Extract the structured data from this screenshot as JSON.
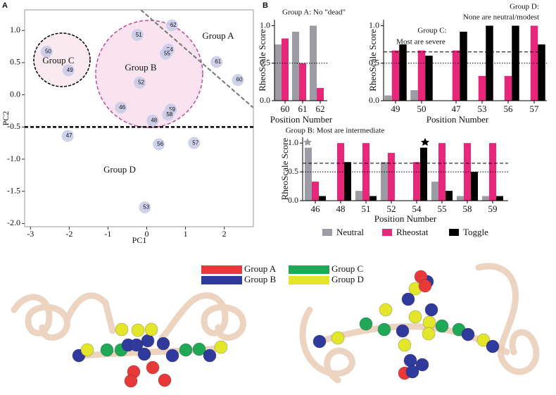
{
  "panel_labels": [
    "A",
    "B"
  ],
  "chart_data": [
    {
      "type": "scatter",
      "xlabel": "PC1",
      "ylabel": "PC2",
      "x": [
        -2.58,
        -2.02,
        -0.24,
        0.65,
        0.56,
        0.49,
        1.8,
        2.35,
        -0.18,
        -0.67,
        0.62,
        0.55,
        0.15,
        -2.04,
        0.31,
        1.22,
        -0.05
      ],
      "values": [
        0.67,
        0.38,
        0.93,
        1.08,
        0.7,
        0.64,
        0.51,
        0.23,
        0.19,
        -0.2,
        -0.23,
        -0.31,
        -0.4,
        -0.64,
        -0.77,
        -0.75,
        -1.75
      ],
      "point_labels": [
        "50",
        "49",
        "51",
        "62",
        "54",
        "55",
        "61",
        "60",
        "52",
        "46",
        "59",
        "58",
        "48",
        "47",
        "56",
        "57",
        "53"
      ],
      "color": "#c8cae8",
      "xlim": [
        -3.15,
        2.75
      ],
      "ylim": [
        -2.05,
        1.32
      ],
      "xticks": [
        -3,
        -2,
        -1,
        0,
        1,
        2
      ],
      "yticks": [
        {
          "value": -2,
          "label": "-2.0"
        },
        -1.5,
        {
          "value": -1,
          "label": "-1.0"
        },
        -0.5,
        {
          "value": 0,
          "label": "0.0"
        },
        0.5,
        {
          "value": 1,
          "label": "1.0"
        }
      ],
      "reference_lines": [
        {
          "value": -0.5,
          "style": "dashed"
        }
      ],
      "annotations": [
        "Group A",
        "Group B",
        "Group C",
        "Group D"
      ]
    },
    {
      "type": "bar",
      "title": "Group A: No \"dead\"",
      "xlabel": "Position Number",
      "ylabel": "RheoScale Score",
      "categories": [
        "60",
        "61",
        "62"
      ],
      "series": [
        {
          "values": [
            0.75,
            0.92,
            1.0
          ]
        },
        {
          "values": [
            0.83,
            0.5,
            0.17
          ]
        },
        {
          "values": [
            0,
            0,
            0
          ]
        }
      ],
      "ylim": [
        0,
        1.08
      ],
      "yticks": [
        {
          "value": 0,
          "label": "0.0"
        },
        0.5,
        {
          "value": 1,
          "label": "1.0"
        }
      ],
      "reference_lines": [
        {
          "value": 0.5,
          "style": "dotted"
        }
      ]
    },
    {
      "type": "bar",
      "xlabel": "Position Number",
      "ylabel": "RheoScale Score",
      "annotations": [
        "Group C:",
        "Most are severe",
        "Group D:",
        "None are neutral/modest"
      ],
      "categories": [
        "49",
        "50",
        "47",
        "53",
        "56",
        "57"
      ],
      "series": [
        {
          "values": [
            0.07,
            0.14,
            0,
            0,
            0,
            0
          ]
        },
        {
          "values": [
            0.67,
            0.67,
            0.67,
            0.33,
            0.33,
            1.0
          ]
        },
        {
          "values": [
            0.75,
            0.6,
            0.92,
            1.0,
            1.0,
            0.75
          ]
        }
      ],
      "ylim": [
        0,
        1.08
      ],
      "yticks": [
        {
          "value": 0,
          "label": "0.0"
        },
        0.5,
        {
          "value": 1,
          "label": "1.0"
        }
      ],
      "reference_lines": [
        {
          "value": 0.65,
          "style": "dashed"
        },
        {
          "value": 0.5,
          "style": "dotted"
        }
      ]
    },
    {
      "type": "bar",
      "title": "Group B: Most are intermediate",
      "xlabel": "Position Number",
      "ylabel": "RheoScale Score",
      "categories": [
        "46",
        "48",
        "51",
        "52",
        "54",
        "55",
        "58",
        "59"
      ],
      "series": [
        {
          "values": [
            0.92,
            0,
            0.17,
            0.67,
            0,
            0.33,
            0.08,
            0.08
          ]
        },
        {
          "values": [
            0.33,
            1.0,
            1.0,
            0.83,
            0.67,
            1.0,
            1.0,
            1.0
          ]
        },
        {
          "values": [
            0.08,
            0.67,
            0.08,
            0,
            0.92,
            0.17,
            0.5,
            0.08
          ]
        }
      ],
      "ylim": [
        0,
        1.1
      ],
      "yticks": [
        {
          "value": 0,
          "label": "0.0"
        },
        0.5,
        {
          "value": 1,
          "label": "1.0"
        }
      ],
      "reference_lines": [
        {
          "value": 0.65,
          "style": "dashed"
        },
        {
          "value": 0.5,
          "style": "dotted"
        }
      ]
    }
  ],
  "bar_legend": [
    {
      "name": "Neutral",
      "color": "#9c9ca4"
    },
    {
      "name": "Rheostat",
      "color": "#e8277a"
    },
    {
      "name": "Toggle",
      "color": "#000000"
    }
  ],
  "structure_legend": [
    {
      "name": "Group A",
      "color": "#e8393a"
    },
    {
      "name": "Group B",
      "color": "#2f3a9c"
    },
    {
      "name": "Group C",
      "color": "#1fa957"
    },
    {
      "name": "Group D",
      "color": "#e3e62a"
    }
  ]
}
